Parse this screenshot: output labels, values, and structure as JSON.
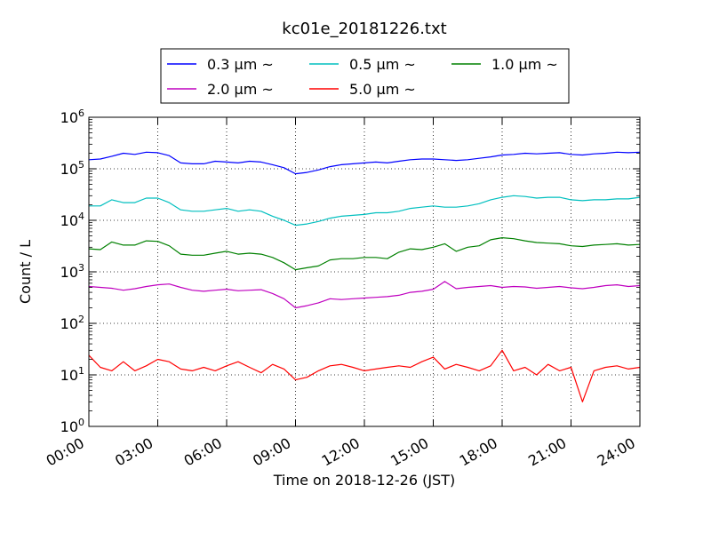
{
  "chart_data": {
    "type": "line",
    "title": "kc01e_20181226.txt",
    "xlabel": "Time on 2018-12-26 (JST)",
    "ylabel": "Count / L",
    "yscale": "log",
    "ylim": [
      1,
      1000000
    ],
    "xlim": [
      "00:00",
      "24:00"
    ],
    "grid": true,
    "legend_position": "top",
    "x_tick_labels": [
      "00:00",
      "03:00",
      "06:00",
      "09:00",
      "12:00",
      "15:00",
      "18:00",
      "21:00",
      "24:00"
    ],
    "y_tick_labels": [
      {
        "base": "10",
        "exp": "0"
      },
      {
        "base": "10",
        "exp": "1"
      },
      {
        "base": "10",
        "exp": "2"
      },
      {
        "base": "10",
        "exp": "3"
      },
      {
        "base": "10",
        "exp": "4"
      },
      {
        "base": "10",
        "exp": "5"
      },
      {
        "base": "10",
        "exp": "6"
      }
    ],
    "x": [
      "00:00",
      "00:30",
      "01:00",
      "01:30",
      "02:00",
      "02:30",
      "03:00",
      "03:30",
      "04:00",
      "04:30",
      "05:00",
      "05:30",
      "06:00",
      "06:30",
      "07:00",
      "07:30",
      "08:00",
      "08:30",
      "09:00",
      "09:30",
      "10:00",
      "10:30",
      "11:00",
      "11:30",
      "12:00",
      "12:30",
      "13:00",
      "13:30",
      "14:00",
      "14:30",
      "15:00",
      "15:30",
      "16:00",
      "16:30",
      "17:00",
      "17:30",
      "18:00",
      "18:30",
      "19:00",
      "19:30",
      "20:00",
      "20:30",
      "21:00",
      "21:30",
      "22:00",
      "22:30",
      "23:00",
      "23:30",
      "24:00"
    ],
    "series": [
      {
        "name": "0.3 μm ~",
        "color": "#0000ff",
        "values": [
          150000,
          155000,
          175000,
          200000,
          190000,
          210000,
          205000,
          180000,
          130000,
          125000,
          125000,
          140000,
          135000,
          130000,
          140000,
          135000,
          120000,
          105000,
          80000,
          85000,
          95000,
          110000,
          120000,
          125000,
          130000,
          135000,
          130000,
          140000,
          150000,
          155000,
          155000,
          150000,
          145000,
          150000,
          160000,
          170000,
          185000,
          190000,
          200000,
          195000,
          200000,
          205000,
          190000,
          185000,
          195000,
          200000,
          210000,
          205000,
          210000
        ]
      },
      {
        "name": "0.5 μm ~",
        "color": "#00bfbf",
        "values": [
          19000,
          19000,
          25000,
          22000,
          22000,
          27000,
          27000,
          22000,
          16000,
          15000,
          15000,
          16000,
          17000,
          15000,
          16000,
          15000,
          12000,
          10000,
          8000,
          8500,
          9500,
          11000,
          12000,
          12500,
          13000,
          14000,
          14000,
          15000,
          17000,
          18000,
          19000,
          18000,
          18000,
          19000,
          21000,
          25000,
          28000,
          30000,
          29000,
          27000,
          28000,
          28000,
          25000,
          24000,
          25000,
          25000,
          26000,
          26000,
          28000
        ]
      },
      {
        "name": "1.0 μm ~",
        "color": "#008000",
        "values": [
          2800,
          2700,
          3800,
          3300,
          3300,
          4000,
          3900,
          3200,
          2200,
          2100,
          2100,
          2300,
          2500,
          2200,
          2300,
          2200,
          1900,
          1500,
          1100,
          1200,
          1300,
          1700,
          1800,
          1800,
          1900,
          1900,
          1800,
          2400,
          2800,
          2700,
          3000,
          3500,
          2500,
          3000,
          3200,
          4200,
          4600,
          4400,
          4000,
          3700,
          3600,
          3500,
          3200,
          3100,
          3300,
          3400,
          3500,
          3300,
          3400
        ]
      },
      {
        "name": "2.0 μm ~",
        "color": "#bf00bf",
        "values": [
          520,
          500,
          480,
          440,
          470,
          520,
          560,
          580,
          500,
          440,
          420,
          440,
          460,
          430,
          440,
          450,
          380,
          300,
          200,
          220,
          250,
          300,
          290,
          300,
          310,
          320,
          330,
          350,
          400,
          420,
          460,
          650,
          470,
          500,
          520,
          540,
          500,
          520,
          510,
          480,
          500,
          520,
          490,
          470,
          500,
          540,
          560,
          520,
          540
        ]
      },
      {
        "name": "5.0 μm ~",
        "color": "#ff0000",
        "values": [
          24,
          14,
          12,
          18,
          12,
          15,
          20,
          18,
          13,
          12,
          14,
          12,
          15,
          18,
          14,
          11,
          16,
          13,
          8,
          9,
          12,
          15,
          16,
          14,
          12,
          13,
          14,
          15,
          14,
          18,
          22,
          13,
          16,
          14,
          12,
          15,
          30,
          12,
          14,
          10,
          16,
          12,
          14,
          3,
          12,
          14,
          15,
          13,
          14
        ]
      }
    ]
  }
}
